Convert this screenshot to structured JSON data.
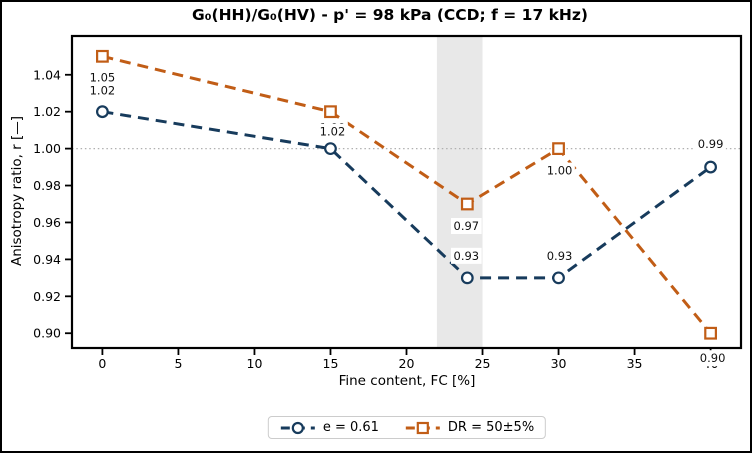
{
  "chart_data": {
    "type": "line",
    "title": "G₀(HH)/G₀(HV) - p' = 98 kPa (CCD; f = 17 kHz)",
    "xlabel": "Fine content, FC [%]",
    "ylabel": "Anisotropy ratio, r [—]",
    "xlim": [
      -2,
      42
    ],
    "ylim": [
      0.892,
      1.061
    ],
    "xticks": [
      0,
      5,
      10,
      15,
      20,
      25,
      30,
      35,
      40
    ],
    "yticks": [
      0.9,
      0.92,
      0.94,
      0.96,
      0.98,
      1.0,
      1.02,
      1.04
    ],
    "grid": false,
    "line_style": "dashed",
    "legend_position": "bottom-center",
    "reference_line": {
      "y": 1.0,
      "style": "dotted",
      "color": "#b0b0b0"
    },
    "highlight_band": {
      "x_from": 22,
      "x_to": 25,
      "color": "#e8e8e8"
    },
    "series": [
      {
        "name": "e = 0.61",
        "color": "#173b5c",
        "marker": "circle",
        "points": [
          {
            "x": 0,
            "y": 1.02,
            "label": "1.02",
            "dx": 0,
            "dy": -21
          },
          {
            "x": 15,
            "y": 1.0,
            "label": "1.00",
            "dx": 2,
            "dy": -21
          },
          {
            "x": 24,
            "y": 0.93,
            "label": "0.93",
            "dx": -1,
            "dy": -22
          },
          {
            "x": 30,
            "y": 0.93,
            "label": "0.93",
            "dx": 1,
            "dy": -22
          },
          {
            "x": 40,
            "y": 0.99,
            "label": "0.99",
            "dx": 0,
            "dy": -23
          }
        ]
      },
      {
        "name": "DR = 50±5%",
        "color": "#c15d16",
        "marker": "square",
        "points": [
          {
            "x": 0,
            "y": 1.05,
            "label": "1.05",
            "dx": 0,
            "dy": 21
          },
          {
            "x": 15,
            "y": 1.02,
            "label": "1.02",
            "dx": 2,
            "dy": 20
          },
          {
            "x": 24,
            "y": 0.97,
            "label": "0.97",
            "dx": -1,
            "dy": 22
          },
          {
            "x": 30,
            "y": 1.0,
            "label": "1.00",
            "dx": 1,
            "dy": 22
          },
          {
            "x": 40,
            "y": 0.9,
            "label": "0.90",
            "dx": 2,
            "dy": 25
          }
        ]
      }
    ]
  }
}
